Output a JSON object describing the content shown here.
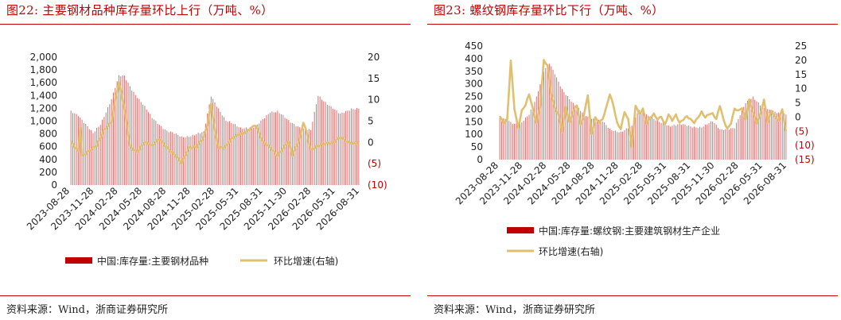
{
  "charts": [
    {
      "title": "图22:  主要钢材品种库存量环比上行（万吨、%）",
      "source": "资料来源：Wind，浙商证券研究所",
      "chart_data": {
        "type": "bar",
        "x_labels": [
          "2023-08-28",
          "2023-11-28",
          "2024-02-28",
          "2024-05-28",
          "2024-08-28",
          "2024-11-28",
          "2025-02-28",
          "2025-05-31",
          "2025-08-31",
          "2025-11-30",
          "2026-02-28",
          "2026-05-31",
          "2026-08-31"
        ],
        "y_left": {
          "min": 0,
          "max": 2000,
          "ticks": [
            "0",
            "200",
            "400",
            "600",
            "800",
            "1,000",
            "1,200",
            "1,400",
            "1,600",
            "1,800",
            "2,000"
          ]
        },
        "y_right": {
          "min": -10,
          "max": 20,
          "ticks": [
            "(10)",
            "(5)",
            "0",
            "5",
            "10",
            "15",
            "20"
          ]
        },
        "series": [
          {
            "name": "中国:库存量:主要钢材品种",
            "type": "bar",
            "axis": "left",
            "color": "#c00000",
            "knots": [
              [
                0,
                1150
              ],
              [
                4,
                1100
              ],
              [
                12,
                800
              ],
              [
                16,
                950
              ],
              [
                22,
                1350
              ],
              [
                26,
                1700
              ],
              [
                29,
                1700
              ],
              [
                33,
                1500
              ],
              [
                38,
                1300
              ],
              [
                44,
                1050
              ],
              [
                52,
                850
              ],
              [
                60,
                750
              ],
              [
                66,
                780
              ],
              [
                72,
                820
              ],
              [
                76,
                1400
              ],
              [
                78,
                1300
              ],
              [
                84,
                1000
              ],
              [
                92,
                900
              ],
              [
                100,
                900
              ],
              [
                108,
                1150
              ],
              [
                112,
                1150
              ],
              [
                118,
                1000
              ],
              [
                126,
                880
              ],
              [
                130,
                850
              ],
              [
                134,
                1400
              ],
              [
                140,
                1250
              ],
              [
                146,
                1100
              ],
              [
                152,
                1200
              ],
              [
                156,
                1200
              ]
            ]
          },
          {
            "name": "环比增速(右轴)",
            "type": "line",
            "axis": "right",
            "color": "#e0c070",
            "knots": [
              [
                0,
                0
              ],
              [
                2,
                -1
              ],
              [
                4,
                -2
              ],
              [
                5,
                4
              ],
              [
                6,
                -3
              ],
              [
                10,
                -2
              ],
              [
                14,
                -1
              ],
              [
                18,
                3
              ],
              [
                22,
                5
              ],
              [
                24,
                10
              ],
              [
                26,
                14
              ],
              [
                28,
                10
              ],
              [
                30,
                5
              ],
              [
                32,
                -1
              ],
              [
                36,
                -2
              ],
              [
                40,
                0
              ],
              [
                44,
                -1
              ],
              [
                48,
                1
              ],
              [
                52,
                -1
              ],
              [
                56,
                -3
              ],
              [
                60,
                -5
              ],
              [
                62,
                -3
              ],
              [
                64,
                -1
              ],
              [
                68,
                -1
              ],
              [
                70,
                0
              ],
              [
                72,
                1
              ],
              [
                74,
                4
              ],
              [
                76,
                9
              ],
              [
                78,
                3
              ],
              [
                80,
                -1
              ],
              [
                84,
                -1
              ],
              [
                88,
                1
              ],
              [
                92,
                2
              ],
              [
                96,
                3
              ],
              [
                100,
                4
              ],
              [
                104,
                0
              ],
              [
                108,
                -1
              ],
              [
                112,
                -3
              ],
              [
                116,
                -1
              ],
              [
                118,
                0
              ],
              [
                120,
                -3
              ],
              [
                124,
                1
              ],
              [
                126,
                5
              ],
              [
                128,
                2
              ],
              [
                130,
                -2
              ],
              [
                134,
                -1
              ],
              [
                138,
                0
              ],
              [
                142,
                0
              ],
              [
                146,
                1
              ],
              [
                150,
                0
              ],
              [
                154,
                0
              ],
              [
                156,
                0
              ]
            ]
          }
        ],
        "legend": [
          "中国:库存量:主要钢材品种",
          "环比增速(右轴)"
        ]
      }
    },
    {
      "title": "图23:  螺纹钢库存量环比下行（万吨、%）",
      "source": "资料来源：Wind，浙商证券研究所",
      "chart_data": {
        "type": "bar",
        "x_labels": [
          "2023-08-28",
          "2023-11-28",
          "2024-02-28",
          "2024-05-28",
          "2024-08-28",
          "2024-11-28",
          "2025-02-28",
          "2025-05-31",
          "2025-08-31",
          "2025-11-30",
          "2026-02-28",
          "2026-05-31",
          "2026-08-31"
        ],
        "y_left": {
          "min": 0,
          "max": 450,
          "ticks": [
            "0",
            "50",
            "100",
            "150",
            "200",
            "250",
            "300",
            "350",
            "400",
            "450"
          ]
        },
        "y_right": {
          "min": -15,
          "max": 25,
          "ticks": [
            "(15)",
            "(10)",
            "(5)",
            "0",
            "5",
            "10",
            "15",
            "20",
            "25"
          ]
        },
        "series": [
          {
            "name": "中国:库存量:螺纹钢:主要建筑钢材生产企业",
            "type": "bar",
            "axis": "left",
            "color": "#c00000",
            "knots": [
              [
                0,
                170
              ],
              [
                4,
                160
              ],
              [
                8,
                140
              ],
              [
                12,
                145
              ],
              [
                16,
                180
              ],
              [
                20,
                250
              ],
              [
                24,
                350
              ],
              [
                27,
                380
              ],
              [
                30,
                340
              ],
              [
                34,
                280
              ],
              [
                40,
                220
              ],
              [
                46,
                180
              ],
              [
                52,
                160
              ],
              [
                56,
                150
              ],
              [
                60,
                120
              ],
              [
                66,
                110
              ],
              [
                72,
                130
              ],
              [
                76,
                200
              ],
              [
                80,
                180
              ],
              [
                86,
                150
              ],
              [
                92,
                135
              ],
              [
                98,
                140
              ],
              [
                104,
                130
              ],
              [
                110,
                130
              ],
              [
                116,
                150
              ],
              [
                120,
                120
              ],
              [
                128,
                125
              ],
              [
                134,
                225
              ],
              [
                138,
                250
              ],
              [
                144,
                200
              ],
              [
                150,
                190
              ],
              [
                156,
                180
              ]
            ]
          },
          {
            "name": "环比增速(右轴)",
            "type": "line",
            "axis": "right",
            "color": "#e0c070",
            "knots": [
              [
                0,
                0
              ],
              [
                2,
                -2
              ],
              [
                4,
                -1
              ],
              [
                6,
                20
              ],
              [
                8,
                3
              ],
              [
                10,
                -4
              ],
              [
                12,
                2
              ],
              [
                14,
                4
              ],
              [
                16,
                8
              ],
              [
                18,
                3
              ],
              [
                20,
                -2
              ],
              [
                22,
                4
              ],
              [
                24,
                20
              ],
              [
                26,
                18
              ],
              [
                28,
                8
              ],
              [
                30,
                3
              ],
              [
                32,
                1
              ],
              [
                34,
                -5
              ],
              [
                36,
                4
              ],
              [
                38,
                -2
              ],
              [
                40,
                2
              ],
              [
                42,
                4
              ],
              [
                44,
                -3
              ],
              [
                46,
                1
              ],
              [
                48,
                8
              ],
              [
                50,
                -6
              ],
              [
                52,
                0
              ],
              [
                54,
                -2
              ],
              [
                56,
                -1
              ],
              [
                58,
                3
              ],
              [
                60,
                8
              ],
              [
                62,
                4
              ],
              [
                64,
                -2
              ],
              [
                66,
                -4
              ],
              [
                68,
                2
              ],
              [
                70,
                -1
              ],
              [
                72,
                -11
              ],
              [
                74,
                4
              ],
              [
                76,
                1
              ],
              [
                78,
                3
              ],
              [
                80,
                -2
              ],
              [
                82,
                0
              ],
              [
                84,
                1
              ],
              [
                86,
                -1
              ],
              [
                88,
                0
              ],
              [
                90,
                -3
              ],
              [
                92,
                1
              ],
              [
                94,
                -1
              ],
              [
                96,
                1
              ],
              [
                98,
                -2
              ],
              [
                100,
                -1
              ],
              [
                102,
                0
              ],
              [
                104,
                -1
              ],
              [
                106,
                -2
              ],
              [
                108,
                0
              ],
              [
                110,
                2
              ],
              [
                112,
                0
              ],
              [
                114,
                1
              ],
              [
                116,
                1
              ],
              [
                118,
                -1
              ],
              [
                120,
                4
              ],
              [
                122,
                -1
              ],
              [
                124,
                -4
              ],
              [
                126,
                -2
              ],
              [
                128,
                3
              ],
              [
                130,
                2
              ],
              [
                132,
                3
              ],
              [
                134,
                -1
              ],
              [
                136,
                6
              ],
              [
                138,
                2
              ],
              [
                140,
                -2
              ],
              [
                142,
                1
              ],
              [
                144,
                6
              ],
              [
                146,
                -2
              ],
              [
                148,
                2
              ],
              [
                150,
                0
              ],
              [
                152,
                -1
              ],
              [
                154,
                3
              ],
              [
                156,
                -5
              ]
            ]
          }
        ],
        "legend": [
          "中国:库存量:螺纹钢:主要建筑钢材生产企业",
          "环比增速(右轴)"
        ]
      }
    }
  ]
}
